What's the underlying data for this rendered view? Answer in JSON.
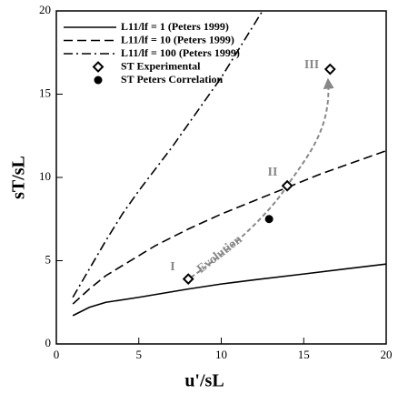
{
  "chart_data": {
    "type": "line",
    "x_label": "u'/sL",
    "y_label": "sT/sL",
    "xlim": [
      0,
      20
    ],
    "ylim": [
      0,
      20
    ],
    "xticks": [
      0,
      5,
      10,
      15,
      20
    ],
    "yticks": [
      0,
      5,
      10,
      15,
      20
    ],
    "legend": "upper left",
    "series": [
      {
        "name": "L11/lf = 1 (Peters 1999)",
        "kind": "line",
        "dash": "solid",
        "color": "#000000",
        "x": [
          1,
          2,
          3,
          5,
          8,
          10,
          12,
          15,
          20
        ],
        "values": [
          1.7,
          2.2,
          2.5,
          2.8,
          3.3,
          3.6,
          3.85,
          4.2,
          4.8
        ]
      },
      {
        "name": "L11/lf = 10 (Peters 1999)",
        "kind": "line",
        "dash": "dashed",
        "color": "#000000",
        "x": [
          1,
          2,
          3,
          4,
          5,
          6,
          8,
          10,
          12,
          14,
          16,
          18,
          20
        ],
        "values": [
          2.4,
          3.3,
          4.1,
          4.7,
          5.3,
          5.9,
          6.9,
          7.8,
          8.6,
          9.4,
          10.2,
          10.9,
          11.6
        ]
      },
      {
        "name": "L11/lf = 100 (Peters 1999)",
        "kind": "line",
        "dash": "dashdot",
        "color": "#000000",
        "x": [
          1,
          2,
          3,
          4,
          5,
          6,
          7,
          8,
          9,
          10,
          11,
          12,
          12.5
        ],
        "values": [
          2.8,
          4.5,
          6.2,
          7.8,
          9.2,
          10.5,
          11.8,
          13.2,
          14.6,
          16.0,
          17.6,
          19.2,
          20
        ]
      },
      {
        "name": "ST Experimental",
        "kind": "scatter",
        "marker": "diamond",
        "color": "#000000",
        "x": [
          8,
          14,
          16.6
        ],
        "values": [
          3.9,
          9.5,
          16.5
        ]
      },
      {
        "name": "ST Peters Correlation",
        "kind": "scatter",
        "marker": "circle",
        "color": "#000000",
        "x": [
          12.9
        ],
        "values": [
          7.5
        ]
      }
    ],
    "annotations": [
      "I",
      "II",
      "III",
      "Evolution"
    ]
  }
}
